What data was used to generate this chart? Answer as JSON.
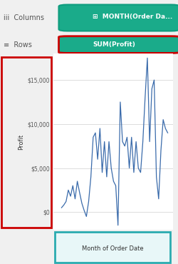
{
  "title_row1_label": "iii  Columns",
  "title_row1_pill": "MONTH(Order Da...",
  "title_row2_label": "≡  Rows",
  "title_row2_pill": "SUM(Profit)",
  "xlabel": "Month of Order Date",
  "ylabel": "Profit",
  "yticks": [
    0,
    5000,
    10000,
    15000
  ],
  "ytick_labels": [
    "$0",
    "$5,000",
    "$10,000",
    "$15,000"
  ],
  "xticks": [
    2014,
    2015,
    2016,
    2017
  ],
  "xlim": [
    2013.7,
    2018.1
  ],
  "ylim": [
    -2000,
    18000
  ],
  "line_color": "#3a6bab",
  "bg_color": "#f8f8f8",
  "pill1_bg": "#1aab8a",
  "pill1_border": "#0e9c7e",
  "pill2_bg": "#1aab8a",
  "pill2_border": "#cc0000",
  "header_bg": "#ffffff",
  "red_box_color": "#cc0000",
  "teal_box_color": "#2aabb0",
  "grid_color": "#d0d0d0",
  "data_x": [
    2014.0,
    2014.083,
    2014.167,
    2014.25,
    2014.333,
    2014.417,
    2014.5,
    2014.583,
    2014.667,
    2014.75,
    2014.833,
    2014.917,
    2015.0,
    2015.083,
    2015.167,
    2015.25,
    2015.333,
    2015.417,
    2015.5,
    2015.583,
    2015.667,
    2015.75,
    2015.833,
    2015.917,
    2016.0,
    2016.083,
    2016.167,
    2016.25,
    2016.333,
    2016.417,
    2016.5,
    2016.583,
    2016.667,
    2016.75,
    2016.833,
    2016.917,
    2017.0,
    2017.083,
    2017.167,
    2017.25,
    2017.333,
    2017.417,
    2017.5,
    2017.583,
    2017.667,
    2017.75,
    2017.833,
    2017.917
  ],
  "data_y": [
    500,
    800,
    1200,
    2500,
    1800,
    3000,
    1500,
    3500,
    2200,
    1000,
    200,
    -500,
    1200,
    4000,
    8500,
    9000,
    6000,
    9500,
    4500,
    8000,
    4000,
    8000,
    5000,
    3500,
    3000,
    -1500,
    12500,
    8000,
    7500,
    8500,
    5000,
    8500,
    4500,
    8000,
    5000,
    4500,
    8000,
    13000,
    17500,
    8000,
    14000,
    15000,
    4000,
    1500,
    7000,
    10500,
    9500,
    9000
  ]
}
